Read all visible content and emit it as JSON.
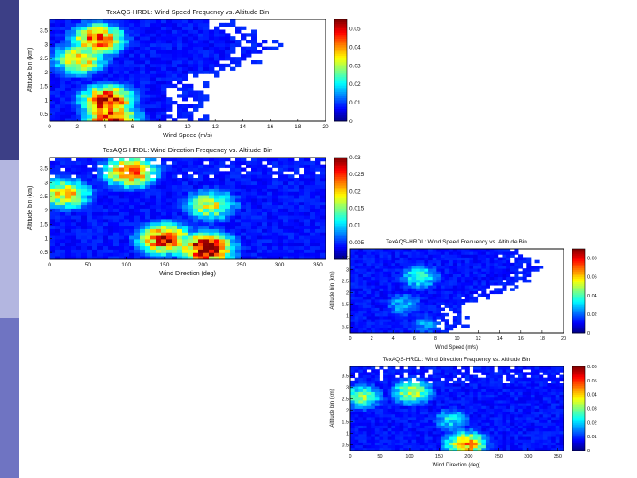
{
  "slide": {
    "sidebar_colors": [
      "#3c3f86",
      "#b3b6e0",
      "#6f74c2"
    ]
  },
  "chart_data": [
    {
      "type": "heatmap",
      "title": "TexAQS-HRDL: Wind Speed Frequency vs. Altitude Bin",
      "xlabel": "Wind Speed (m/s)",
      "ylabel": "Altitude bin (km)",
      "xlim": [
        0,
        20
      ],
      "ylim": [
        0.25,
        3.9
      ],
      "x_ticks": [
        "0",
        "2",
        "4",
        "6",
        "8",
        "10",
        "12",
        "14",
        "16",
        "18",
        "20"
      ],
      "x_tick_values": [
        0,
        2,
        4,
        6,
        8,
        10,
        12,
        14,
        16,
        18,
        20
      ],
      "y_ticks": [
        "0.5",
        "1",
        "1.5",
        "2",
        "2.5",
        "3",
        "3.5"
      ],
      "y_tick_values": [
        0.5,
        1,
        1.5,
        2,
        2.5,
        3,
        3.5
      ],
      "colorbar": {
        "min": 0,
        "max": 0.055,
        "ticks": [
          "0",
          "0.01",
          "0.02",
          "0.03",
          "0.04",
          "0.05"
        ],
        "tick_values": [
          0,
          0.01,
          0.02,
          0.03,
          0.04,
          0.05
        ]
      },
      "grid": false,
      "approx_max_speed_by_altitude": {
        "altitude_km": [
          0.3,
          1.8,
          2.1,
          3.0,
          3.9
        ],
        "max_speed_ms": [
          10.5,
          10.5,
          13.5,
          16,
          12
        ]
      },
      "hotspots": [
        {
          "x": 4.2,
          "y": 1.0,
          "value": 0.05
        },
        {
          "x": 3.5,
          "y": 3.2,
          "value": 0.045
        },
        {
          "x": 2.2,
          "y": 2.5,
          "value": 0.038
        },
        {
          "x": 4.5,
          "y": 0.35,
          "value": 0.05
        }
      ]
    },
    {
      "type": "heatmap",
      "title": "TexAQS-HRDL: Wind Direction Frequency vs. Altitude Bin",
      "xlabel": "Wind Direction (deg)",
      "ylabel": "Altitude bin (km)",
      "xlim": [
        0,
        360
      ],
      "ylim": [
        0.25,
        3.9
      ],
      "x_ticks": [
        "0",
        "50",
        "100",
        "150",
        "200",
        "250",
        "300",
        "350"
      ],
      "x_tick_values": [
        0,
        50,
        100,
        150,
        200,
        250,
        300,
        350
      ],
      "y_ticks": [
        "0.5",
        "1",
        "1.5",
        "2",
        "2.5",
        "3",
        "3.5"
      ],
      "y_tick_values": [
        0.5,
        1,
        1.5,
        2,
        2.5,
        3,
        3.5
      ],
      "colorbar": {
        "min": 0,
        "max": 0.03,
        "ticks": [
          "0",
          "0.005",
          "0.01",
          "0.015",
          "0.02",
          "0.025",
          "0.03"
        ],
        "tick_values": [
          0,
          0.005,
          0.01,
          0.015,
          0.02,
          0.025,
          0.03
        ]
      },
      "grid": false,
      "hotspots": [
        {
          "x": 205,
          "y": 0.65,
          "value": 0.03
        },
        {
          "x": 150,
          "y": 1.0,
          "value": 0.026
        },
        {
          "x": 105,
          "y": 3.4,
          "value": 0.024
        },
        {
          "x": 20,
          "y": 2.6,
          "value": 0.02
        },
        {
          "x": 210,
          "y": 2.2,
          "value": 0.018
        }
      ]
    },
    {
      "type": "heatmap",
      "title": "TexAQS-HRDL: Wind Speed Frequency vs. Altitude Bin",
      "xlabel": "Wind Speed (m/s)",
      "ylabel": "Altitude bin (km)",
      "xlim": [
        0,
        20
      ],
      "ylim": [
        0.25,
        3.9
      ],
      "x_ticks": [
        "0",
        "2",
        "4",
        "6",
        "8",
        "10",
        "12",
        "14",
        "16",
        "18",
        "20"
      ],
      "x_tick_values": [
        0,
        2,
        4,
        6,
        8,
        10,
        12,
        14,
        16,
        18,
        20
      ],
      "y_ticks": [
        "0.5",
        "1",
        "1.5",
        "2",
        "2.5",
        "3",
        "3.5"
      ],
      "y_tick_values": [
        0.5,
        1,
        1.5,
        2,
        2.5,
        3,
        3.5
      ],
      "colorbar": {
        "min": 0,
        "max": 0.09,
        "ticks": [
          "0",
          "0.02",
          "0.04",
          "0.06",
          "0.08"
        ],
        "tick_values": [
          0,
          0.02,
          0.04,
          0.06,
          0.08
        ]
      },
      "grid": false,
      "approx_max_speed_by_altitude": {
        "altitude_km": [
          0.3,
          1.5,
          2.0,
          3.0,
          3.9
        ],
        "max_speed_ms": [
          10,
          10.5,
          14,
          18,
          15
        ]
      },
      "hotspots": [
        {
          "x": 6.5,
          "y": 2.7,
          "value": 0.04
        },
        {
          "x": 5.0,
          "y": 1.5,
          "value": 0.03
        },
        {
          "x": 7.0,
          "y": 0.6,
          "value": 0.025
        }
      ]
    },
    {
      "type": "heatmap",
      "title": "TexAQS-HRDL: Wind Direction Frequency vs. Altitude Bin",
      "xlabel": "Wind Direction (deg)",
      "ylabel": "Altitude bin (km)",
      "xlim": [
        0,
        360
      ],
      "ylim": [
        0.25,
        3.9
      ],
      "x_ticks": [
        "0",
        "50",
        "100",
        "150",
        "200",
        "250",
        "300",
        "350"
      ],
      "x_tick_values": [
        0,
        50,
        100,
        150,
        200,
        250,
        300,
        350
      ],
      "y_ticks": [
        "0.5",
        "1",
        "1.5",
        "2",
        "2.5",
        "3",
        "3.5"
      ],
      "y_tick_values": [
        0.5,
        1,
        1.5,
        2,
        2.5,
        3,
        3.5
      ],
      "colorbar": {
        "min": 0,
        "max": 0.06,
        "ticks": [
          "0",
          "0.01",
          "0.02",
          "0.03",
          "0.04",
          "0.05",
          "0.06"
        ],
        "tick_values": [
          0,
          0.01,
          0.02,
          0.03,
          0.04,
          0.05,
          0.06
        ]
      },
      "grid": false,
      "hotspots": [
        {
          "x": 195,
          "y": 0.55,
          "value": 0.045
        },
        {
          "x": 105,
          "y": 2.8,
          "value": 0.035
        },
        {
          "x": 20,
          "y": 2.6,
          "value": 0.03
        },
        {
          "x": 170,
          "y": 1.6,
          "value": 0.022
        }
      ]
    }
  ]
}
